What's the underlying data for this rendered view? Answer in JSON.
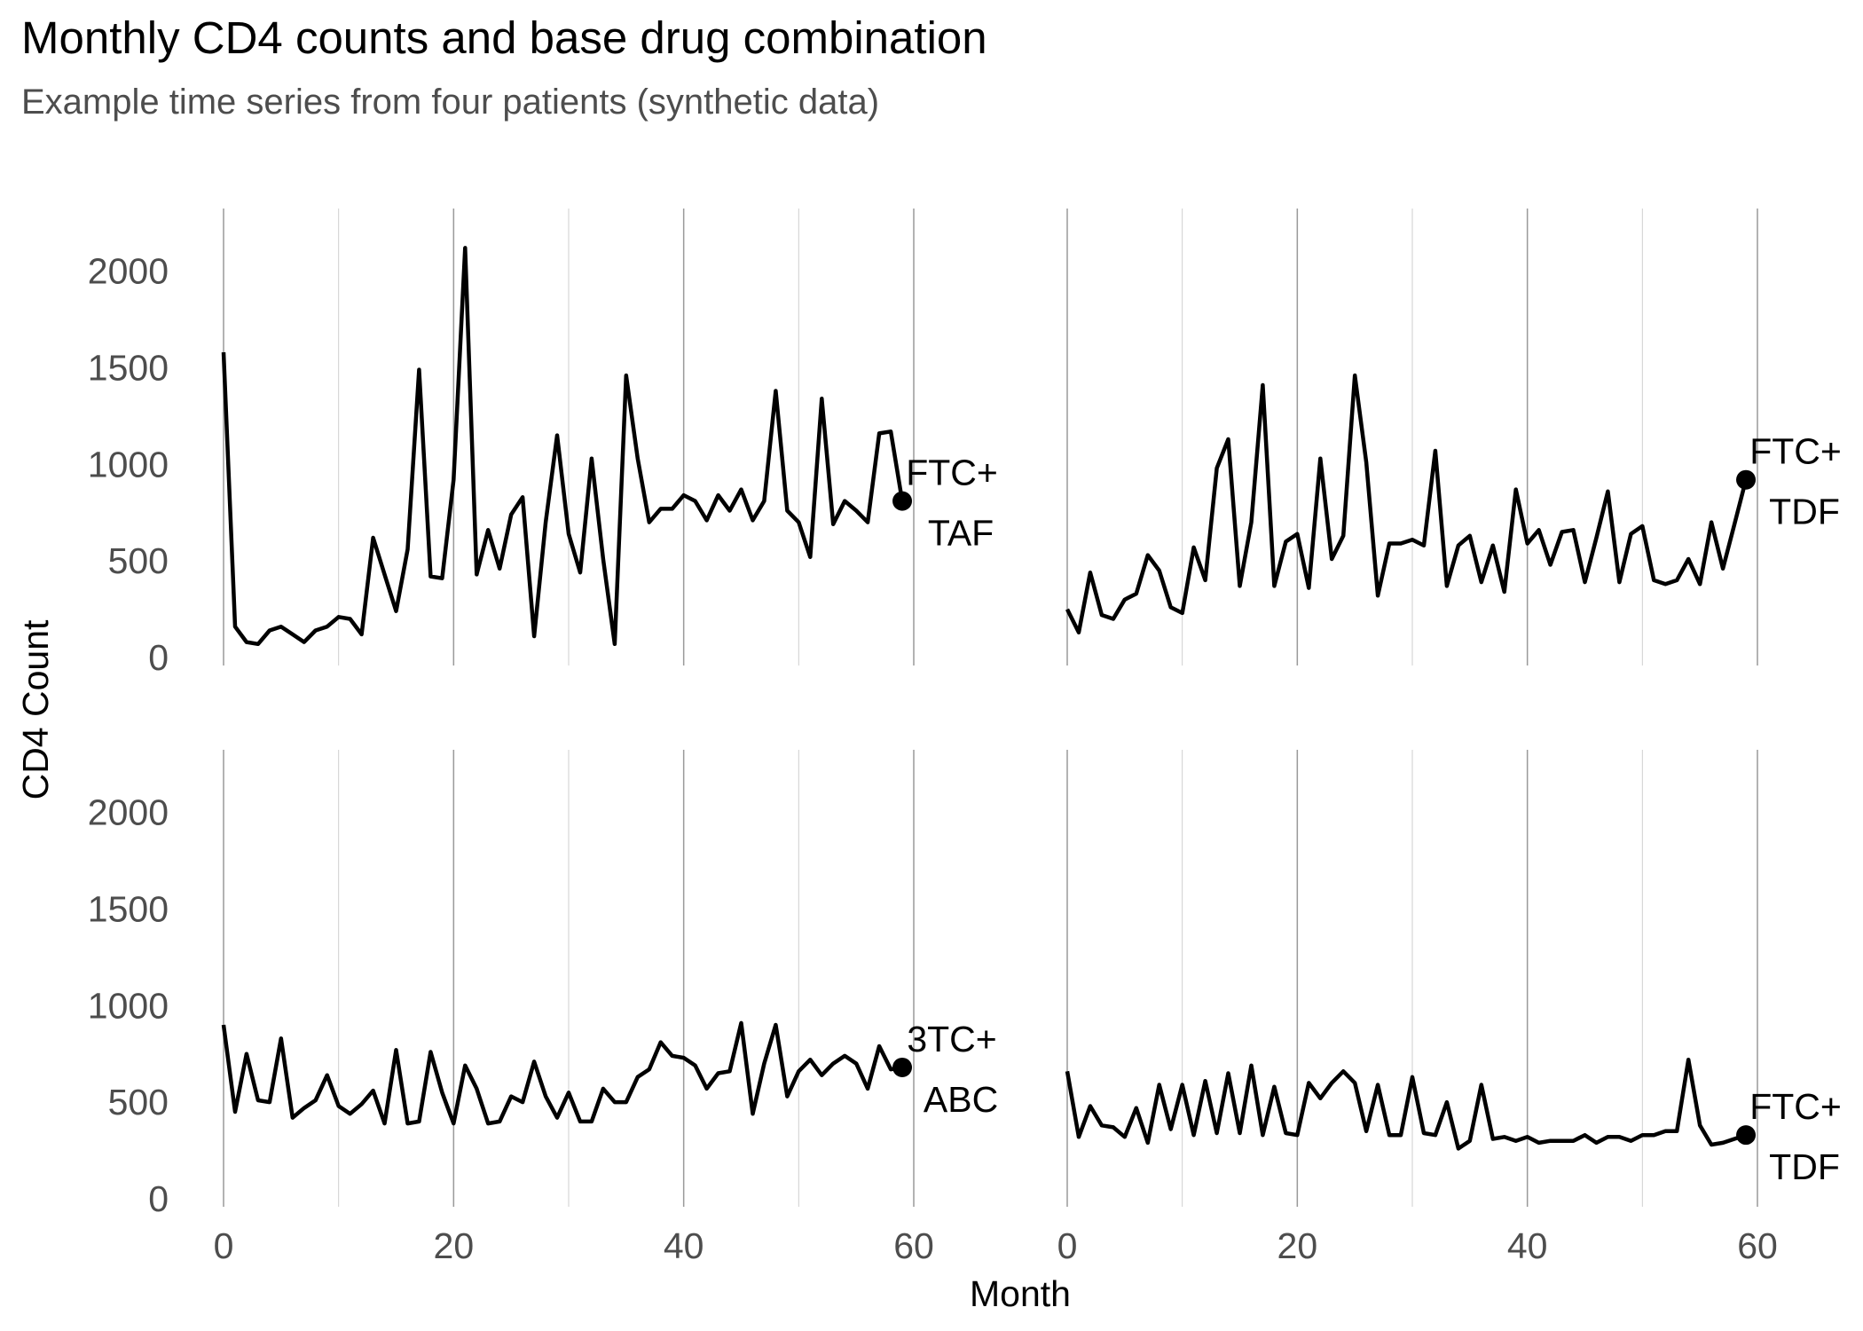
{
  "chart_data": {
    "type": "line",
    "title": "Monthly CD4 counts and base drug combination",
    "subtitle": "Example time series from four patients (synthetic data)",
    "xlabel": "Month",
    "ylabel": "CD4 Count",
    "xlim": [
      0,
      60
    ],
    "ylim": [
      0,
      2200
    ],
    "x_ticks": [
      0,
      20,
      40,
      60
    ],
    "x_tick_labels": [
      "0",
      "20",
      "40",
      "60"
    ],
    "y_ticks": [
      0,
      500,
      1000,
      1500,
      2000
    ],
    "y_tick_labels": [
      "0",
      "500",
      "1000",
      "1500",
      "2000"
    ],
    "grid": "vertical",
    "panels": [
      {
        "label_line1": "FTC+",
        "label_line2": "TAF",
        "values": [
          1580,
          160,
          80,
          70,
          140,
          160,
          120,
          80,
          140,
          160,
          210,
          200,
          120,
          620,
          430,
          240,
          560,
          1490,
          420,
          410,
          920,
          2120,
          430,
          660,
          460,
          740,
          830,
          110,
          700,
          1150,
          640,
          440,
          1030,
          510,
          70,
          1460,
          1030,
          700,
          770,
          770,
          840,
          810,
          710,
          840,
          760,
          870,
          710,
          810,
          1380,
          760,
          700,
          520,
          1340,
          690,
          810,
          760,
          700,
          1160,
          1170,
          810
        ]
      },
      {
        "label_line1": "FTC+",
        "label_line2": "TDF",
        "values": [
          250,
          130,
          440,
          220,
          200,
          300,
          330,
          530,
          450,
          260,
          230,
          570,
          400,
          980,
          1130,
          370,
          700,
          1410,
          370,
          600,
          640,
          360,
          1030,
          510,
          630,
          1460,
          1010,
          320,
          590,
          590,
          610,
          580,
          1070,
          370,
          580,
          630,
          390,
          580,
          340,
          870,
          590,
          660,
          480,
          650,
          660,
          390,
          620,
          860,
          390,
          640,
          680,
          400,
          380,
          400,
          510,
          380,
          700,
          460,
          690,
          920
        ]
      },
      {
        "label_line1": "3TC+",
        "label_line2": "ABC",
        "values": [
          900,
          450,
          750,
          510,
          500,
          830,
          420,
          470,
          510,
          640,
          480,
          440,
          490,
          560,
          390,
          770,
          390,
          400,
          760,
          550,
          390,
          690,
          570,
          390,
          400,
          530,
          500,
          710,
          530,
          420,
          550,
          400,
          400,
          570,
          500,
          500,
          630,
          670,
          810,
          740,
          730,
          690,
          570,
          650,
          660,
          910,
          440,
          700,
          900,
          530,
          660,
          720,
          640,
          700,
          740,
          700,
          570,
          790,
          670,
          680
        ]
      },
      {
        "label_line1": "FTC+",
        "label_line2": "TDF",
        "values": [
          660,
          320,
          480,
          380,
          370,
          320,
          470,
          290,
          590,
          360,
          590,
          330,
          610,
          340,
          650,
          340,
          690,
          330,
          580,
          340,
          330,
          600,
          520,
          600,
          660,
          600,
          350,
          590,
          330,
          330,
          630,
          340,
          330,
          500,
          260,
          300,
          590,
          310,
          320,
          300,
          320,
          290,
          300,
          300,
          300,
          330,
          290,
          320,
          320,
          300,
          330,
          330,
          350,
          350,
          720,
          380,
          280,
          290,
          310,
          330
        ]
      }
    ]
  }
}
